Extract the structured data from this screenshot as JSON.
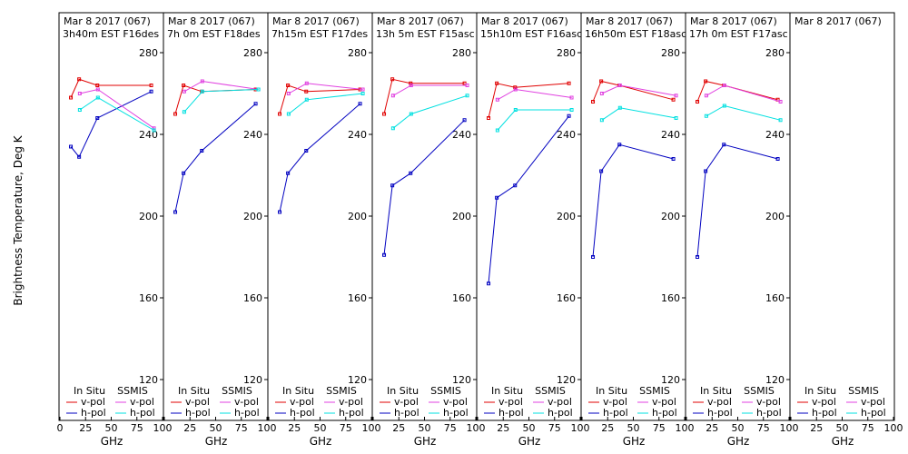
{
  "y_axis_label": "Brightness Temperature, Deg K",
  "x_axis_label": "GHz",
  "colors": {
    "insitu_v": "#e00000",
    "insitu_h": "#0000c0",
    "ssmis_v": "#e040e0",
    "ssmis_h": "#00e0e0",
    "frame": "#000000"
  },
  "legend": {
    "insitu": "In Situ",
    "ssmis": "SSMIS",
    "vpol": "v-pol",
    "hpol": "h-pol"
  },
  "chart_data": [
    {
      "type": "line",
      "title_line1": "Mar 8 2017 (067)",
      "title_line2": "3h40m EST F16des",
      "xlabel": "GHz",
      "ylabel": "Brightness Temperature, Deg K",
      "xlim": [
        0,
        100
      ],
      "ylim": [
        110,
        290
      ],
      "xticks": [
        "0",
        "25",
        "50",
        "75",
        "100"
      ],
      "yticks": [
        "120",
        "160",
        "200",
        "240",
        "280"
      ],
      "series": [
        {
          "name": "In Situ v-pol",
          "x": [
            10.65,
            18.7,
            36.5,
            89
          ],
          "y": [
            258,
            267,
            264,
            264
          ]
        },
        {
          "name": "In Situ h-pol",
          "x": [
            10.65,
            18.7,
            36.5,
            89
          ],
          "y": [
            234,
            229,
            248,
            261
          ]
        },
        {
          "name": "SSMIS v-pol",
          "x": [
            19.35,
            37,
            91.65
          ],
          "y": [
            260,
            262,
            243
          ]
        },
        {
          "name": "SSMIS h-pol",
          "x": [
            19.35,
            37,
            91.65
          ],
          "y": [
            252,
            258,
            242
          ]
        }
      ]
    },
    {
      "type": "line",
      "title_line1": "Mar 8 2017 (067)",
      "title_line2": "7h 0m EST F18des",
      "xlabel": "GHz",
      "ylabel": "",
      "xlim": [
        0,
        100
      ],
      "ylim": [
        110,
        290
      ],
      "xticks": [
        "0",
        "25",
        "50",
        "75",
        "100"
      ],
      "yticks": [
        "120",
        "160",
        "200",
        "240",
        "280"
      ],
      "series": [
        {
          "name": "In Situ v-pol",
          "x": [
            10.65,
            18.7,
            36.5,
            89
          ],
          "y": [
            250,
            264,
            261,
            262
          ]
        },
        {
          "name": "In Situ h-pol",
          "x": [
            10.65,
            18.7,
            36.5,
            89
          ],
          "y": [
            202,
            221,
            232,
            255
          ]
        },
        {
          "name": "SSMIS v-pol",
          "x": [
            19.35,
            37,
            91.65
          ],
          "y": [
            261,
            266,
            262
          ]
        },
        {
          "name": "SSMIS h-pol",
          "x": [
            19.35,
            37,
            91.65
          ],
          "y": [
            251,
            261,
            262
          ]
        }
      ]
    },
    {
      "type": "line",
      "title_line1": "Mar 8 2017 (067)",
      "title_line2": "7h15m EST F17des",
      "xlabel": "GHz",
      "ylabel": "",
      "xlim": [
        0,
        100
      ],
      "ylim": [
        110,
        290
      ],
      "xticks": [
        "0",
        "25",
        "50",
        "75",
        "100"
      ],
      "yticks": [
        "120",
        "160",
        "200",
        "240",
        "280"
      ],
      "series": [
        {
          "name": "In Situ v-pol",
          "x": [
            10.65,
            18.7,
            36.5,
            89
          ],
          "y": [
            250,
            264,
            261,
            262
          ]
        },
        {
          "name": "In Situ h-pol",
          "x": [
            10.65,
            18.7,
            36.5,
            89
          ],
          "y": [
            202,
            221,
            232,
            255
          ]
        },
        {
          "name": "SSMIS v-pol",
          "x": [
            19.35,
            37,
            91.65
          ],
          "y": [
            260,
            265,
            262
          ]
        },
        {
          "name": "SSMIS h-pol",
          "x": [
            19.35,
            37,
            91.65
          ],
          "y": [
            250,
            257,
            260
          ]
        }
      ]
    },
    {
      "type": "line",
      "title_line1": "Mar 8 2017 (067)",
      "title_line2": "13h 5m EST F15asc",
      "xlabel": "GHz",
      "ylabel": "",
      "xlim": [
        0,
        100
      ],
      "ylim": [
        110,
        290
      ],
      "xticks": [
        "0",
        "25",
        "50",
        "75",
        "100"
      ],
      "yticks": [
        "120",
        "160",
        "200",
        "240",
        "280"
      ],
      "series": [
        {
          "name": "In Situ v-pol",
          "x": [
            10.65,
            18.7,
            36.5,
            89
          ],
          "y": [
            250,
            267,
            265,
            265
          ]
        },
        {
          "name": "In Situ h-pol",
          "x": [
            10.65,
            18.7,
            36.5,
            89
          ],
          "y": [
            181,
            215,
            221,
            247
          ]
        },
        {
          "name": "SSMIS v-pol",
          "x": [
            19.35,
            37,
            91.65
          ],
          "y": [
            259,
            264,
            264
          ]
        },
        {
          "name": "SSMIS h-pol",
          "x": [
            19.35,
            37,
            91.65
          ],
          "y": [
            243,
            250,
            259
          ]
        }
      ]
    },
    {
      "type": "line",
      "title_line1": "Mar 8 2017 (067)",
      "title_line2": "15h10m EST F16asc",
      "xlabel": "GHz",
      "ylabel": "",
      "xlim": [
        0,
        100
      ],
      "ylim": [
        110,
        290
      ],
      "xticks": [
        "0",
        "25",
        "50",
        "75",
        "100"
      ],
      "yticks": [
        "120",
        "160",
        "200",
        "240",
        "280"
      ],
      "series": [
        {
          "name": "In Situ v-pol",
          "x": [
            10.65,
            18.7,
            36.5,
            89
          ],
          "y": [
            248,
            265,
            263,
            265
          ]
        },
        {
          "name": "In Situ h-pol",
          "x": [
            10.65,
            18.7,
            36.5,
            89
          ],
          "y": [
            167,
            209,
            215,
            249
          ]
        },
        {
          "name": "SSMIS v-pol",
          "x": [
            19.35,
            37,
            91.65
          ],
          "y": [
            257,
            262,
            258
          ]
        },
        {
          "name": "SSMIS h-pol",
          "x": [
            19.35,
            37,
            91.65
          ],
          "y": [
            242,
            252,
            252
          ]
        }
      ]
    },
    {
      "type": "line",
      "title_line1": "Mar 8 2017 (067)",
      "title_line2": "16h50m EST F18asc",
      "xlabel": "GHz",
      "ylabel": "",
      "xlim": [
        0,
        100
      ],
      "ylim": [
        110,
        290
      ],
      "xticks": [
        "0",
        "25",
        "50",
        "75",
        "100"
      ],
      "yticks": [
        "120",
        "160",
        "200",
        "240",
        "280"
      ],
      "series": [
        {
          "name": "In Situ v-pol",
          "x": [
            10.65,
            18.7,
            36.5,
            89
          ],
          "y": [
            256,
            266,
            264,
            257
          ]
        },
        {
          "name": "In Situ h-pol",
          "x": [
            10.65,
            18.7,
            36.5,
            89
          ],
          "y": [
            180,
            222,
            235,
            228
          ]
        },
        {
          "name": "SSMIS v-pol",
          "x": [
            19.35,
            37,
            91.65
          ],
          "y": [
            260,
            264,
            259
          ]
        },
        {
          "name": "SSMIS h-pol",
          "x": [
            19.35,
            37,
            91.65
          ],
          "y": [
            247,
            253,
            248
          ]
        }
      ]
    },
    {
      "type": "line",
      "title_line1": "Mar 8 2017 (067)",
      "title_line2": "17h 0m EST F17asc",
      "xlabel": "GHz",
      "ylabel": "",
      "xlim": [
        0,
        100
      ],
      "ylim": [
        110,
        290
      ],
      "xticks": [
        "0",
        "25",
        "50",
        "75",
        "100"
      ],
      "yticks": [
        "120",
        "160",
        "200",
        "240",
        "280"
      ],
      "series": [
        {
          "name": "In Situ v-pol",
          "x": [
            10.65,
            18.7,
            36.5,
            89
          ],
          "y": [
            256,
            266,
            264,
            257
          ]
        },
        {
          "name": "In Situ h-pol",
          "x": [
            10.65,
            18.7,
            36.5,
            89
          ],
          "y": [
            180,
            222,
            235,
            228
          ]
        },
        {
          "name": "SSMIS v-pol",
          "x": [
            19.35,
            37,
            91.65
          ],
          "y": [
            259,
            264,
            256
          ]
        },
        {
          "name": "SSMIS h-pol",
          "x": [
            19.35,
            37,
            91.65
          ],
          "y": [
            249,
            254,
            247
          ]
        }
      ]
    },
    {
      "type": "line",
      "title_line1": "Mar 8 2017 (067)",
      "title_line2": "",
      "xlabel": "GHz",
      "ylabel": "",
      "xlim": [
        0,
        100
      ],
      "ylim": [
        110,
        290
      ],
      "xticks": [
        "0",
        "25",
        "50",
        "75",
        "100"
      ],
      "yticks": [],
      "series": []
    }
  ]
}
